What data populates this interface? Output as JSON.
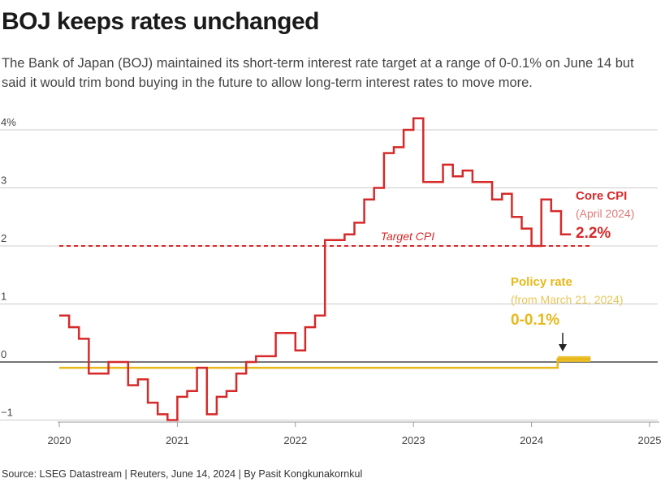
{
  "title": "BOJ keeps rates unchanged",
  "subtitle": "The Bank of Japan (BOJ) maintained its short-term interest rate target at a range of 0-0.1% on June 14 but said it would trim bond buying in the future to allow long-term interest rates to move more.",
  "source": "Source: LSEG Datastream | Reuters, June 14, 2024 | By Pasit Kongkunakornkul",
  "colors": {
    "core_cpi": "#d62a2a",
    "policy_rate": "#e8b819",
    "target": "#d62a2a",
    "grid": "#cccccc",
    "zero": "#222222"
  },
  "chart_data": {
    "type": "line",
    "x_unit": "year",
    "xlim": [
      2020,
      2025
    ],
    "ylim": [
      -1,
      4.3
    ],
    "y_ticks": [
      {
        "value": 4,
        "label": "4%"
      },
      {
        "value": 3,
        "label": "3"
      },
      {
        "value": 2,
        "label": "2"
      },
      {
        "value": 1,
        "label": "1"
      },
      {
        "value": 0,
        "label": "0"
      },
      {
        "value": -1,
        "label": "−1"
      }
    ],
    "x_ticks": [
      "2020",
      "2021",
      "2022",
      "2023",
      "2024",
      "2025"
    ],
    "grid": true,
    "series": [
      {
        "name": "Core CPI",
        "step": true,
        "points": [
          [
            "2020-01",
            0.8
          ],
          [
            "2020-02",
            0.6
          ],
          [
            "2020-03",
            0.4
          ],
          [
            "2020-04",
            -0.2
          ],
          [
            "2020-05",
            -0.2
          ],
          [
            "2020-06",
            0.0
          ],
          [
            "2020-07",
            0.0
          ],
          [
            "2020-08",
            -0.4
          ],
          [
            "2020-09",
            -0.3
          ],
          [
            "2020-10",
            -0.7
          ],
          [
            "2020-11",
            -0.9
          ],
          [
            "2020-12",
            -1.0
          ],
          [
            "2021-01",
            -0.6
          ],
          [
            "2021-02",
            -0.5
          ],
          [
            "2021-03",
            -0.1
          ],
          [
            "2021-04",
            -0.9
          ],
          [
            "2021-05",
            -0.6
          ],
          [
            "2021-06",
            -0.5
          ],
          [
            "2021-07",
            -0.2
          ],
          [
            "2021-08",
            0.0
          ],
          [
            "2021-09",
            0.1
          ],
          [
            "2021-10",
            0.1
          ],
          [
            "2021-11",
            0.5
          ],
          [
            "2021-12",
            0.5
          ],
          [
            "2022-01",
            0.2
          ],
          [
            "2022-02",
            0.6
          ],
          [
            "2022-03",
            0.8
          ],
          [
            "2022-04",
            2.1
          ],
          [
            "2022-05",
            2.1
          ],
          [
            "2022-06",
            2.2
          ],
          [
            "2022-07",
            2.4
          ],
          [
            "2022-08",
            2.8
          ],
          [
            "2022-09",
            3.0
          ],
          [
            "2022-10",
            3.6
          ],
          [
            "2022-11",
            3.7
          ],
          [
            "2022-12",
            4.0
          ],
          [
            "2023-01",
            4.2
          ],
          [
            "2023-02",
            3.1
          ],
          [
            "2023-03",
            3.1
          ],
          [
            "2023-04",
            3.4
          ],
          [
            "2023-05",
            3.2
          ],
          [
            "2023-06",
            3.3
          ],
          [
            "2023-07",
            3.1
          ],
          [
            "2023-08",
            3.1
          ],
          [
            "2023-09",
            2.8
          ],
          [
            "2023-10",
            2.9
          ],
          [
            "2023-11",
            2.5
          ],
          [
            "2023-12",
            2.3
          ],
          [
            "2024-01",
            2.0
          ],
          [
            "2024-02",
            2.8
          ],
          [
            "2024-03",
            2.6
          ],
          [
            "2024-04",
            2.2
          ]
        ]
      },
      {
        "name": "Policy rate",
        "points": [
          [
            "2020-01",
            -0.1
          ],
          [
            "2024-03-21",
            -0.1
          ],
          [
            "2024-03-21",
            0.05
          ],
          [
            "2024-07",
            0.05
          ]
        ],
        "band": [
          0,
          0.1
        ]
      }
    ],
    "target_cpi": {
      "value": 2,
      "label": "Target CPI"
    },
    "annotations": {
      "core_cpi": {
        "title": "Core CPI",
        "sub": "(April 2024)",
        "value": "2.2%"
      },
      "policy": {
        "title": "Policy rate",
        "sub": "(from March 21, 2024)",
        "value": "0-0.1%"
      }
    }
  }
}
